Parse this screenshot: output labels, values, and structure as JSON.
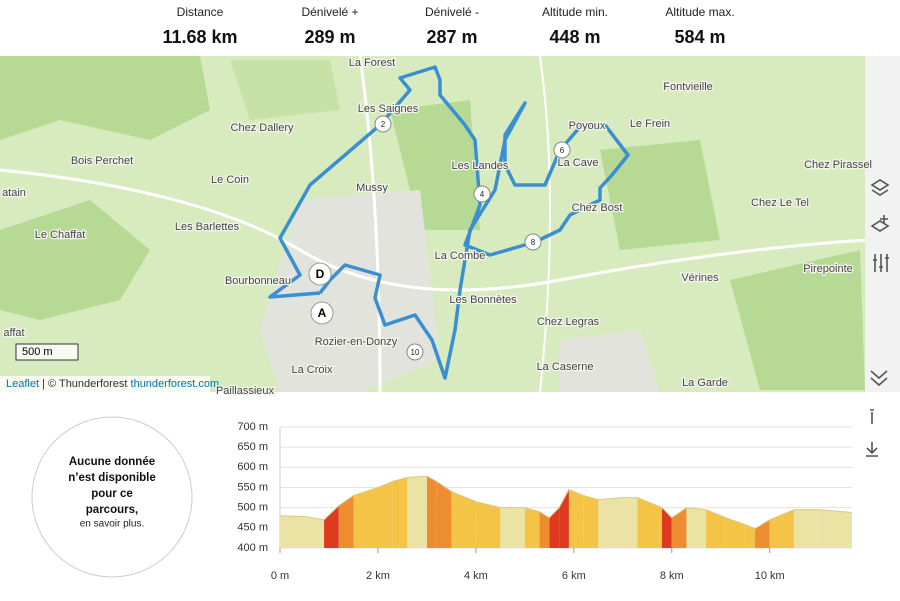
{
  "stats": [
    {
      "label": "Distance",
      "value": "11.68 km"
    },
    {
      "label": "Dénivelé +",
      "value": "289 m"
    },
    {
      "label": "Dénivelé -",
      "value": "287 m"
    },
    {
      "label": "Altitude min.",
      "value": "448 m"
    },
    {
      "label": "Altitude max.",
      "value": "584 m"
    }
  ],
  "map": {
    "places": [
      "La Forest",
      "Les Saignes",
      "Chez Dallery",
      "Fontvieille",
      "Poyoux",
      "Le Frein",
      "La Cave",
      "Les Landes",
      "Bois Perchet",
      "Mussy",
      "Le Coin",
      "Chez Pirassel",
      "atain",
      "Chez Bost",
      "Chez Le Tel",
      "Les Barlettes",
      "Le Chaffat",
      "La Combe",
      "Bourbonneau",
      "Pirepointe",
      "Vérines",
      "Les Bonnètes",
      "Chez Legras",
      "Rozier-en-Donzy",
      "La Caserne",
      "La Croix",
      "La Garde",
      "Paillassieux",
      "affat"
    ],
    "markers": [
      "2",
      "4",
      "6",
      "8",
      "10"
    ],
    "start": "D",
    "end": "A",
    "scale": "500 m",
    "attribution": {
      "leaflet": "Leaflet",
      "sep": "| © Thunderforest",
      "link": "thunderforest.com"
    }
  },
  "notice": {
    "main": "Aucune donnée n’est disponible pour ce parcours,",
    "more": "en savoir plus."
  },
  "elevation_chart": {
    "type": "area",
    "x": [
      0,
      0.5,
      0.9,
      1.2,
      1.5,
      2,
      2.3,
      2.6,
      3.0,
      3.2,
      3.5,
      4,
      4.5,
      5,
      5.3,
      5.5,
      5.7,
      5.9,
      6.2,
      6.5,
      7,
      7.3,
      7.8,
      8.0,
      8.3,
      8.7,
      9.1,
      9.5,
      9.7,
      10,
      10.5,
      11,
      11.68
    ],
    "values": [
      480,
      478,
      470,
      505,
      530,
      550,
      565,
      575,
      578,
      565,
      540,
      515,
      500,
      500,
      490,
      475,
      500,
      545,
      530,
      520,
      525,
      525,
      500,
      475,
      500,
      495,
      475,
      458,
      448,
      470,
      495,
      495,
      488
    ],
    "xlim": [
      0,
      11.68
    ],
    "ylim": [
      400,
      700
    ],
    "xticks": [
      {
        "value": 0,
        "label": "0 m"
      },
      {
        "value": 2,
        "label": "2 km"
      },
      {
        "value": 4,
        "label": "4 km"
      },
      {
        "value": 6,
        "label": "6 km"
      },
      {
        "value": 8,
        "label": "8 km"
      },
      {
        "value": 10,
        "label": "10 km"
      }
    ],
    "yticks": [
      {
        "value": 400,
        "label": "400 m"
      },
      {
        "value": 450,
        "label": "450 m"
      },
      {
        "value": 500,
        "label": "500 m"
      },
      {
        "value": 550,
        "label": "550 m"
      },
      {
        "value": 600,
        "label": "600 m"
      },
      {
        "value": 650,
        "label": "650 m"
      },
      {
        "value": 700,
        "label": "700 m"
      }
    ],
    "grid": true
  }
}
